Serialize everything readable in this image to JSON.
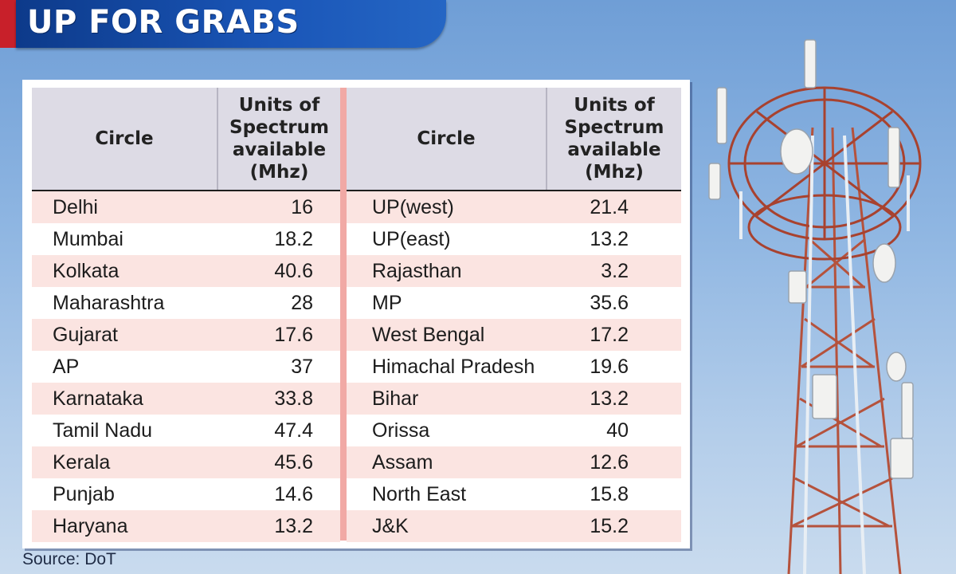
{
  "header": {
    "title": "UP FOR GRABS",
    "accent_color": "#c8202a",
    "bar_color": "#1a56b8"
  },
  "table": {
    "col_circle": "Circle",
    "col_units": "Units of Spectrum available (Mhz)",
    "left_rows": [
      {
        "circle": "Delhi",
        "mhz": "16"
      },
      {
        "circle": "Mumbai",
        "mhz": "18.2"
      },
      {
        "circle": "Kolkata",
        "mhz": "40.6"
      },
      {
        "circle": "Maharashtra",
        "mhz": "28"
      },
      {
        "circle": "Gujarat",
        "mhz": "17.6"
      },
      {
        "circle": "AP",
        "mhz": "37"
      },
      {
        "circle": "Karnataka",
        "mhz": "33.8"
      },
      {
        "circle": "Tamil Nadu",
        "mhz": "47.4"
      },
      {
        "circle": "Kerala",
        "mhz": "45.6"
      },
      {
        "circle": "Punjab",
        "mhz": "14.6"
      },
      {
        "circle": "Haryana",
        "mhz": "13.2"
      }
    ],
    "right_rows": [
      {
        "circle": "UP(west)",
        "mhz": "21.4"
      },
      {
        "circle": "UP(east)",
        "mhz": "13.2"
      },
      {
        "circle": "Rajasthan",
        "mhz": "3.2"
      },
      {
        "circle": "MP",
        "mhz": "35.6"
      },
      {
        "circle": "West Bengal",
        "mhz": "17.2"
      },
      {
        "circle": "Himachal Pradesh",
        "mhz": "19.6"
      },
      {
        "circle": "Bihar",
        "mhz": "13.2"
      },
      {
        "circle": "Orissa",
        "mhz": "40"
      },
      {
        "circle": "Assam",
        "mhz": "12.6"
      },
      {
        "circle": "North East",
        "mhz": "15.8"
      },
      {
        "circle": "J&K",
        "mhz": "15.2"
      }
    ],
    "shade_color": "#fbe4e1",
    "header_color": "#dddbe5"
  },
  "footer": {
    "source": "Source: DoT"
  },
  "illustration": {
    "icon": "telecom-tower-icon"
  }
}
